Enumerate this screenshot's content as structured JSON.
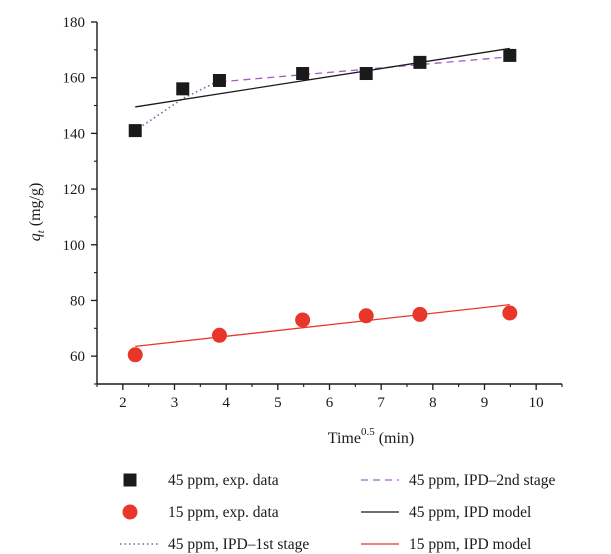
{
  "chart_data": {
    "type": "scatter",
    "title": "",
    "xlabel": {
      "base": "Time",
      "sup": "0.5",
      "unit": " (min)"
    },
    "ylabel": {
      "var": "q",
      "sub": "t",
      "unit": " (mg/g)"
    },
    "xlim": [
      1.5,
      10.5
    ],
    "ylim": [
      50,
      180
    ],
    "xticks": [
      2,
      3,
      4,
      5,
      6,
      7,
      8,
      9,
      10
    ],
    "yticks": [
      60,
      80,
      100,
      120,
      140,
      160,
      180
    ],
    "grid": false,
    "legend_position": "below",
    "series": [
      {
        "name": "45 ppm, exp. data",
        "kind": "scatter",
        "marker": "square",
        "color": "#1a1a1a",
        "x": [
          2.24,
          3.16,
          3.87,
          5.48,
          6.71,
          7.75,
          9.49
        ],
        "y": [
          141,
          156,
          159,
          161.5,
          161.5,
          165.5,
          168
        ]
      },
      {
        "name": "15 ppm, exp. data",
        "kind": "scatter",
        "marker": "circle",
        "color": "#e8372a",
        "x": [
          2.24,
          3.87,
          5.48,
          6.71,
          7.75,
          9.49
        ],
        "y": [
          60.5,
          67.5,
          73,
          74.5,
          75,
          75.5
        ]
      },
      {
        "name": "45 ppm, IPD–1st stage",
        "kind": "line",
        "style": "dotted",
        "color": "#6a6a9a",
        "x": [
          2.24,
          3.16,
          3.87
        ],
        "y": [
          141,
          152.5,
          159
        ]
      },
      {
        "name": "45 ppm, IPD–2nd stage",
        "kind": "line",
        "style": "dashed",
        "color": "#a35bc8",
        "x": [
          3.87,
          9.49
        ],
        "y": [
          158.5,
          167.5
        ]
      },
      {
        "name": "45 ppm, IPD model",
        "kind": "line",
        "style": "solid",
        "color": "#1a1a1a",
        "x": [
          2.24,
          9.49
        ],
        "y": [
          149.5,
          170.5
        ]
      },
      {
        "name": "15 ppm, IPD model",
        "kind": "line",
        "style": "solid",
        "color": "#e8372a",
        "x": [
          2.24,
          9.49
        ],
        "y": [
          63.5,
          78.5
        ]
      }
    ],
    "legend_order": [
      0,
      3,
      1,
      4,
      2,
      5
    ]
  }
}
